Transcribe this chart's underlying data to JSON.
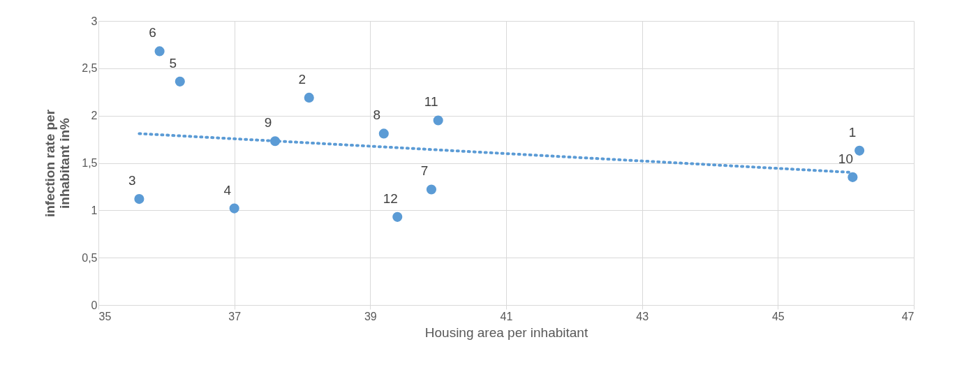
{
  "chart_data": {
    "type": "scatter",
    "xlabel": "Housing area per inhabitant",
    "ylabel": "infection rate per inhabitant in%",
    "xlim": [
      35,
      47
    ],
    "xticks": [
      35,
      37,
      39,
      41,
      43,
      45,
      47
    ],
    "ylim": [
      0,
      3
    ],
    "yticks": [
      0,
      {
        "value": 0.5,
        "label": "0,5"
      },
      1,
      {
        "value": 1.5,
        "label": "1,5"
      },
      2,
      {
        "value": 2.5,
        "label": "2,5"
      },
      3
    ],
    "grid": true,
    "marker": "circle",
    "series": [
      {
        "color": "#5b9bd5",
        "x": [
          46.2,
          38.1,
          35.6,
          37.0,
          36.2,
          35.9,
          39.9,
          39.2,
          37.6,
          46.1,
          40.0,
          39.4
        ],
        "values": [
          1.63,
          2.19,
          1.12,
          1.02,
          2.36,
          2.68,
          1.22,
          1.81,
          1.73,
          1.35,
          1.95,
          0.93
        ]
      },
      {
        "type": "line",
        "color": "#5b9bd5",
        "line_style": "dotted",
        "marker": "none",
        "x": [
          35.6,
          46.1
        ],
        "values": [
          1.81,
          1.4
        ]
      }
    ],
    "annotations": [
      {
        "text": "1",
        "x": 46.2,
        "y": 1.63
      },
      {
        "text": "2",
        "x": 38.1,
        "y": 2.19
      },
      {
        "text": "3",
        "x": 35.6,
        "y": 1.12
      },
      {
        "text": "4",
        "x": 37.0,
        "y": 1.02
      },
      {
        "text": "5",
        "x": 36.2,
        "y": 2.36
      },
      {
        "text": "6",
        "x": 35.9,
        "y": 2.68
      },
      {
        "text": "7",
        "x": 39.9,
        "y": 1.22
      },
      {
        "text": "8",
        "x": 39.2,
        "y": 1.81
      },
      {
        "text": "9",
        "x": 37.6,
        "y": 1.73
      },
      {
        "text": "10",
        "x": 46.1,
        "y": 1.35
      },
      {
        "text": "11",
        "x": 40.0,
        "y": 1.95
      },
      {
        "text": "12",
        "x": 39.4,
        "y": 0.93
      }
    ]
  }
}
